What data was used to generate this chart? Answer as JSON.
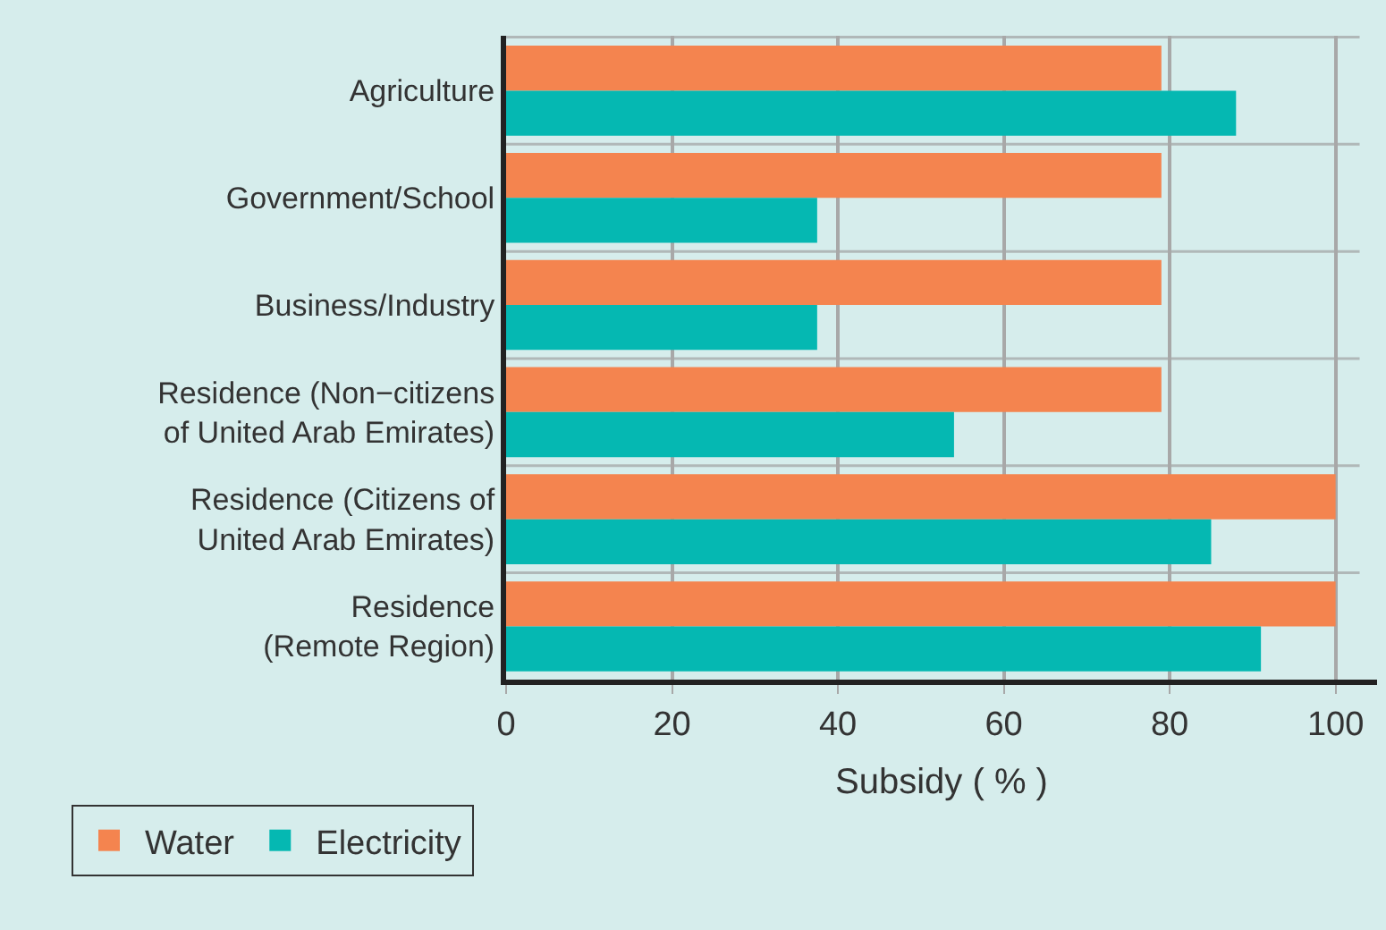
{
  "chart_data": {
    "type": "bar",
    "orientation": "horizontal",
    "xlabel": "Subsidy ( % )",
    "categories": [
      "Agriculture",
      "Government/School",
      "Business/Industry",
      "Residence (Non−citizens\nof United Arab Emirates)",
      "Residence (Citizens of\nUnited Arab Emirates)",
      "Residence\n(Remote Region)"
    ],
    "series": [
      {
        "name": "Water",
        "color": "#f4844f",
        "values": [
          79,
          79,
          79,
          79,
          100,
          100
        ]
      },
      {
        "name": "Electricity",
        "color": "#05b8b2",
        "values": [
          88,
          37.5,
          37.5,
          54,
          85,
          91
        ]
      }
    ],
    "xlim": [
      0,
      105
    ],
    "xticks": [
      0,
      20,
      40,
      60,
      80,
      100
    ],
    "grid": true,
    "legend": "bottom left"
  }
}
